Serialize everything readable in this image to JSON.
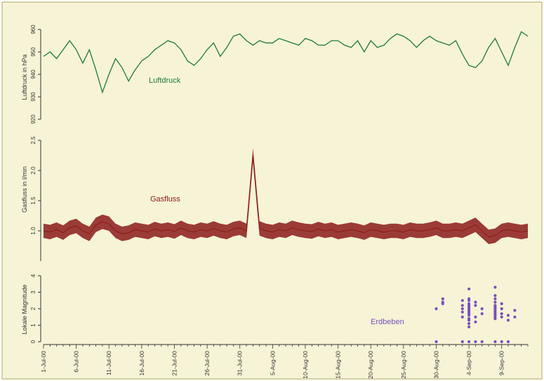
{
  "colors": {
    "background": "#f7f3d6",
    "frame": "#c9c38f",
    "axis": "#333333",
    "luftdruck": "#1e7a3c",
    "gasfluss": "#8b1a1a",
    "erdbeben": "#7a4fc2"
  },
  "chart_data": [
    {
      "type": "line",
      "ylabel": "Luftdruck in hPa",
      "ylim": [
        920,
        960
      ],
      "yticks": [
        "920",
        "930",
        "940",
        "950",
        "960"
      ],
      "series": [
        {
          "name": "Luftdruck",
          "x": [
            "2000-07-01",
            "2000-07-02",
            "2000-07-03",
            "2000-07-04",
            "2000-07-05",
            "2000-07-06",
            "2000-07-07",
            "2000-07-08",
            "2000-07-09",
            "2000-07-10",
            "2000-07-11",
            "2000-07-12",
            "2000-07-13",
            "2000-07-14",
            "2000-07-15",
            "2000-07-16",
            "2000-07-17",
            "2000-07-18",
            "2000-07-19",
            "2000-07-20",
            "2000-07-21",
            "2000-07-22",
            "2000-07-23",
            "2000-07-24",
            "2000-07-25",
            "2000-07-26",
            "2000-07-27",
            "2000-07-28",
            "2000-07-29",
            "2000-07-30",
            "2000-07-31",
            "2000-08-01",
            "2000-08-02",
            "2000-08-03",
            "2000-08-04",
            "2000-08-05",
            "2000-08-06",
            "2000-08-07",
            "2000-08-08",
            "2000-08-09",
            "2000-08-10",
            "2000-08-11",
            "2000-08-12",
            "2000-08-13",
            "2000-08-14",
            "2000-08-15",
            "2000-08-16",
            "2000-08-17",
            "2000-08-18",
            "2000-08-19",
            "2000-08-20",
            "2000-08-21",
            "2000-08-22",
            "2000-08-23",
            "2000-08-24",
            "2000-08-25",
            "2000-08-26",
            "2000-08-27",
            "2000-08-28",
            "2000-08-29",
            "2000-08-30",
            "2000-08-31",
            "2000-09-01",
            "2000-09-02",
            "2000-09-03",
            "2000-09-04",
            "2000-09-05",
            "2000-09-06",
            "2000-09-07",
            "2000-09-08",
            "2000-09-09",
            "2000-09-10",
            "2000-09-11",
            "2000-09-12",
            "2000-09-13"
          ],
          "values": [
            948,
            950,
            947,
            951,
            955,
            951,
            945,
            951,
            942,
            932,
            940,
            947,
            943,
            937,
            942,
            946,
            948,
            951,
            953,
            955,
            954,
            951,
            946,
            944,
            947,
            951,
            954,
            948,
            952,
            957,
            958,
            955,
            953,
            955,
            954,
            954,
            956,
            955,
            954,
            953,
            956,
            955,
            953,
            953,
            955,
            955,
            953,
            952,
            955,
            950,
            955,
            952,
            953,
            956,
            958,
            957,
            955,
            952,
            955,
            957,
            955,
            954,
            953,
            955,
            949,
            944,
            943,
            946,
            952,
            956,
            950,
            944,
            952,
            959,
            957
          ]
        }
      ]
    },
    {
      "type": "line",
      "ylabel": "Gasfluss in l/min",
      "ylim": [
        0.5,
        2.5
      ],
      "yticks": [
        "1.0",
        "1.5",
        "2.0",
        "2.5"
      ],
      "series": [
        {
          "name": "Gasfluss",
          "x": [
            "2000-07-01",
            "2000-07-02",
            "2000-07-03",
            "2000-07-04",
            "2000-07-05",
            "2000-07-06",
            "2000-07-07",
            "2000-07-08",
            "2000-07-09",
            "2000-07-10",
            "2000-07-11",
            "2000-07-12",
            "2000-07-13",
            "2000-07-14",
            "2000-07-15",
            "2000-07-16",
            "2000-07-17",
            "2000-07-18",
            "2000-07-19",
            "2000-07-20",
            "2000-07-21",
            "2000-07-22",
            "2000-07-23",
            "2000-07-24",
            "2000-07-25",
            "2000-07-26",
            "2000-07-27",
            "2000-07-28",
            "2000-07-29",
            "2000-07-30",
            "2000-07-31",
            "2000-08-01",
            "2000-08-02",
            "2000-08-03",
            "2000-08-04",
            "2000-08-05",
            "2000-08-06",
            "2000-08-07",
            "2000-08-08",
            "2000-08-09",
            "2000-08-10",
            "2000-08-11",
            "2000-08-12",
            "2000-08-13",
            "2000-08-14",
            "2000-08-15",
            "2000-08-16",
            "2000-08-17",
            "2000-08-18",
            "2000-08-19",
            "2000-08-20",
            "2000-08-21",
            "2000-08-22",
            "2000-08-23",
            "2000-08-24",
            "2000-08-25",
            "2000-08-26",
            "2000-08-27",
            "2000-08-28",
            "2000-08-29",
            "2000-08-30",
            "2000-08-31",
            "2000-09-01",
            "2000-09-02",
            "2000-09-03",
            "2000-09-04",
            "2000-09-05",
            "2000-09-06",
            "2000-09-07",
            "2000-09-08",
            "2000-09-09",
            "2000-09-10",
            "2000-09-11",
            "2000-09-12",
            "2000-09-13"
          ],
          "values": [
            1.0,
            0.98,
            1.02,
            0.97,
            1.05,
            1.08,
            1.0,
            0.95,
            1.1,
            1.15,
            1.12,
            1.0,
            0.95,
            0.97,
            1.02,
            1.0,
            0.98,
            1.03,
            1.0,
            1.02,
            0.99,
            1.05,
            1.0,
            0.98,
            1.02,
            1.0,
            1.04,
            1.0,
            0.98,
            1.03,
            1.05,
            1.0,
            2.25,
            1.04,
            1.0,
            0.98,
            1.02,
            1.0,
            1.05,
            1.02,
            1.0,
            0.99,
            1.03,
            1.0,
            1.02,
            0.98,
            1.0,
            1.02,
            1.0,
            0.97,
            1.02,
            1.0,
            0.98,
            1.0,
            1.0,
            0.98,
            1.02,
            1.0,
            1.0,
            1.02,
            1.05,
            1.0,
            1.0,
            1.02,
            1.0,
            1.05,
            1.1,
            1.0,
            0.9,
            0.92,
            1.0,
            1.02,
            1.0,
            0.98,
            1.0
          ],
          "band": 0.12
        }
      ]
    },
    {
      "type": "scatter",
      "ylabel": "Lokale Magnitude",
      "ylim": [
        0,
        4
      ],
      "yticks": [
        "0",
        "1",
        "2",
        "3",
        "4"
      ],
      "xticks": [
        "1-Jul-00",
        "6-Jul-00",
        "11-Jul-00",
        "16-Jul-00",
        "21-Jul-00",
        "26-Jul-00",
        "31-Jul-00",
        "5-Aug-00",
        "10-Aug-00",
        "15-Aug-00",
        "20-Aug-00",
        "25-Aug-00",
        "30-Aug-00",
        "4-Sep-00",
        "9-Sep-00"
      ],
      "xrange": [
        "2000-07-01",
        "2000-09-13"
      ],
      "series": [
        {
          "name": "Erdbeben",
          "points": [
            [
              "2000-08-30",
              2.0
            ],
            [
              "2000-08-30",
              0.0
            ],
            [
              "2000-08-31",
              2.4
            ],
            [
              "2000-08-31",
              2.6
            ],
            [
              "2000-08-31",
              2.3
            ],
            [
              "2000-09-03",
              2.5
            ],
            [
              "2000-09-03",
              2.2
            ],
            [
              "2000-09-03",
              1.8
            ],
            [
              "2000-09-03",
              1.5
            ],
            [
              "2000-09-03",
              0.0
            ],
            [
              "2000-09-03",
              2.0
            ],
            [
              "2000-09-04",
              3.2
            ],
            [
              "2000-09-04",
              2.6
            ],
            [
              "2000-09-04",
              2.3
            ],
            [
              "2000-09-04",
              2.1
            ],
            [
              "2000-09-04",
              1.9
            ],
            [
              "2000-09-04",
              1.7
            ],
            [
              "2000-09-04",
              1.4
            ],
            [
              "2000-09-04",
              1.1
            ],
            [
              "2000-09-04",
              0.9
            ],
            [
              "2000-09-04",
              0.0
            ],
            [
              "2000-09-04",
              2.5
            ],
            [
              "2000-09-04",
              1.6
            ],
            [
              "2000-09-04",
              2.2
            ],
            [
              "2000-09-04",
              1.3
            ],
            [
              "2000-09-04",
              1.8
            ],
            [
              "2000-09-04",
              2.0
            ],
            [
              "2000-09-05",
              2.2
            ],
            [
              "2000-09-05",
              1.5
            ],
            [
              "2000-09-05",
              0.0
            ],
            [
              "2000-09-05",
              2.4
            ],
            [
              "2000-09-05",
              1.2
            ],
            [
              "2000-09-06",
              2.0
            ],
            [
              "2000-09-06",
              1.7
            ],
            [
              "2000-09-06",
              0.0
            ],
            [
              "2000-09-08",
              3.3
            ],
            [
              "2000-09-08",
              2.8
            ],
            [
              "2000-09-08",
              2.4
            ],
            [
              "2000-09-08",
              2.2
            ],
            [
              "2000-09-08",
              2.0
            ],
            [
              "2000-09-08",
              1.8
            ],
            [
              "2000-09-08",
              1.6
            ],
            [
              "2000-09-08",
              1.5
            ],
            [
              "2000-09-08",
              1.4
            ],
            [
              "2000-09-08",
              0.0
            ],
            [
              "2000-09-08",
              2.6
            ],
            [
              "2000-09-08",
              1.9
            ],
            [
              "2000-09-08",
              1.7
            ],
            [
              "2000-09-08",
              2.1
            ],
            [
              "2000-09-09",
              2.0
            ],
            [
              "2000-09-09",
              1.7
            ],
            [
              "2000-09-09",
              1.5
            ],
            [
              "2000-09-09",
              0.0
            ],
            [
              "2000-09-09",
              2.3
            ],
            [
              "2000-09-10",
              1.6
            ],
            [
              "2000-09-10",
              1.3
            ],
            [
              "2000-09-10",
              0.0
            ],
            [
              "2000-09-11",
              1.9
            ],
            [
              "2000-09-11",
              1.5
            ]
          ]
        }
      ]
    }
  ]
}
